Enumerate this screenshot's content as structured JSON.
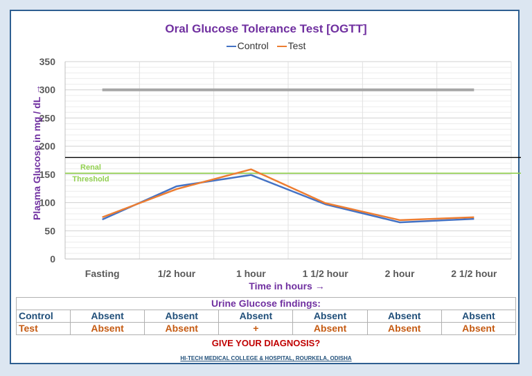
{
  "chart_data": {
    "type": "line",
    "title": "Oral Glucose Tolerance Test [OGTT]",
    "xlabel": "Time in hours →",
    "ylabel": "Plasma Glucose in mg / dL →",
    "categories": [
      "Fasting",
      "1/2 hour",
      "1 hour",
      "1 1/2 hour",
      "2 hour",
      "2 1/2 hour"
    ],
    "series": [
      {
        "name": "Control",
        "color": "#4472c4",
        "values": [
          70,
          129,
          149,
          97,
          65,
          71
        ]
      },
      {
        "name": "Test",
        "color": "#ed7d31",
        "values": [
          74,
          124,
          159,
          99,
          69,
          74
        ]
      }
    ],
    "ylim": [
      0,
      350
    ],
    "yticks": [
      0,
      50,
      100,
      150,
      200,
      250,
      300,
      350
    ],
    "grid": true,
    "legend": "top",
    "reference_lines": [
      {
        "value": 300,
        "color": "#a6a6a6"
      },
      {
        "value": 180,
        "color": "#000000"
      },
      {
        "value": 152,
        "color": "#92d050",
        "label_line1": "Renal",
        "label_line2": "Threshold"
      }
    ]
  },
  "urine": {
    "title": "Urine Glucose findings:",
    "control_label": "Control",
    "test_label": "Test",
    "control": [
      "Absent",
      "Absent",
      "Absent",
      "Absent",
      "Absent",
      "Absent"
    ],
    "test": [
      "Absent",
      "Absent",
      "+",
      "Absent",
      "Absent",
      "Absent"
    ]
  },
  "prompt": "GIVE YOUR DIAGNOSIS?",
  "footer": "HI-TECH MEDICAL COLLEGE & HOSPITAL, ROURKELA, ODISHA"
}
